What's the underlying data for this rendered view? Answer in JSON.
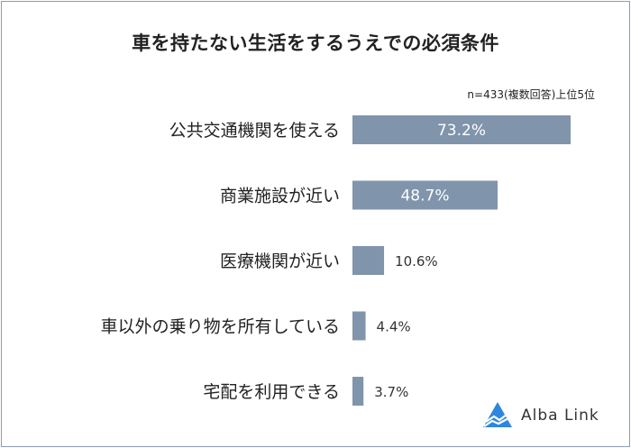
{
  "header": {
    "title": "車を持たない生活をするうえでの必須条件",
    "note": "n=433(複数回答)上位5位"
  },
  "colors": {
    "bar": "#8094ac",
    "frame": "#8c9db1",
    "label_inside": "#ffffff",
    "label_outside": "#333333",
    "logo_accent": "#2e86de"
  },
  "chart_data": {
    "type": "bar",
    "orientation": "horizontal",
    "title": "車を持たない生活をするうえでの必須条件",
    "categories": [
      "公共交通機関を使える",
      "商業施設が近い",
      "医療機関が近い",
      "車以外の乗り物を所有している",
      "宅配を利用できる"
    ],
    "values": [
      73.2,
      48.7,
      10.6,
      4.4,
      3.7
    ],
    "value_labels": [
      "73.2%",
      "48.7%",
      "10.6%",
      "4.4%",
      "3.7%"
    ],
    "unit": "%",
    "xlim": [
      0,
      100
    ],
    "grid": false,
    "legend": "none"
  },
  "logo": {
    "text": "Alba Link",
    "icon": "alba-link-logo-icon"
  }
}
